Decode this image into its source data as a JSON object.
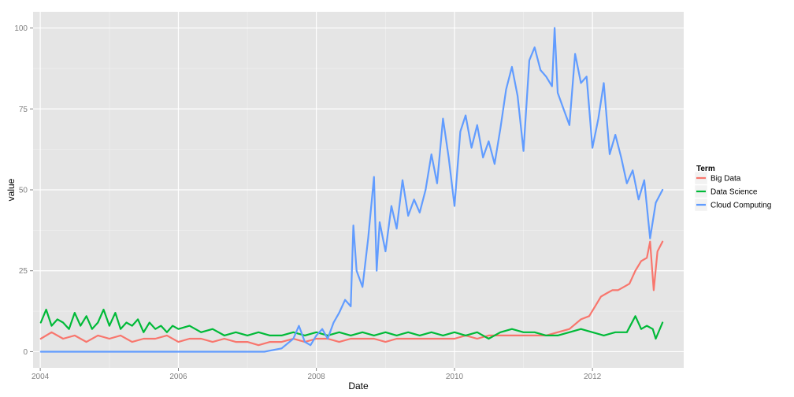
{
  "chart_data": {
    "type": "line",
    "xlabel": "Date",
    "ylabel": "value",
    "x_ticks": [
      "2004",
      "2006",
      "2008",
      "2010",
      "2012"
    ],
    "y_ticks": [
      0,
      25,
      50,
      75,
      100
    ],
    "xlim": [
      "2003-11-24",
      "2013-04-28"
    ],
    "ylim": [
      -5,
      105
    ],
    "grid": true,
    "background": "#e5e5e5",
    "legend": {
      "title": "Term",
      "placement": "right"
    },
    "series": [
      {
        "name": "Big Data",
        "color": "#f8766d",
        "points": [
          [
            "2004-01-04",
            4
          ],
          [
            "2004-03-01",
            6
          ],
          [
            "2004-05-01",
            4
          ],
          [
            "2004-07-01",
            5
          ],
          [
            "2004-09-01",
            3
          ],
          [
            "2004-11-01",
            5
          ],
          [
            "2005-01-01",
            4
          ],
          [
            "2005-03-01",
            5
          ],
          [
            "2005-05-01",
            3
          ],
          [
            "2005-07-01",
            4
          ],
          [
            "2005-09-01",
            4
          ],
          [
            "2005-11-01",
            5
          ],
          [
            "2006-01-01",
            3
          ],
          [
            "2006-03-01",
            4
          ],
          [
            "2006-05-01",
            4
          ],
          [
            "2006-07-01",
            3
          ],
          [
            "2006-09-01",
            4
          ],
          [
            "2006-11-01",
            3
          ],
          [
            "2007-01-01",
            3
          ],
          [
            "2007-03-01",
            2
          ],
          [
            "2007-05-01",
            3
          ],
          [
            "2007-07-01",
            3
          ],
          [
            "2007-09-01",
            4
          ],
          [
            "2007-11-01",
            3
          ],
          [
            "2008-01-01",
            4
          ],
          [
            "2008-03-01",
            4
          ],
          [
            "2008-05-01",
            3
          ],
          [
            "2008-07-01",
            4
          ],
          [
            "2008-09-01",
            4
          ],
          [
            "2008-11-01",
            4
          ],
          [
            "2009-01-01",
            3
          ],
          [
            "2009-03-01",
            4
          ],
          [
            "2009-05-01",
            4
          ],
          [
            "2009-07-01",
            4
          ],
          [
            "2009-09-01",
            4
          ],
          [
            "2009-11-01",
            4
          ],
          [
            "2010-01-01",
            4
          ],
          [
            "2010-03-01",
            5
          ],
          [
            "2010-05-01",
            4
          ],
          [
            "2010-07-01",
            5
          ],
          [
            "2010-09-01",
            5
          ],
          [
            "2010-11-01",
            5
          ],
          [
            "2011-01-01",
            5
          ],
          [
            "2011-03-01",
            5
          ],
          [
            "2011-05-01",
            5
          ],
          [
            "2011-07-01",
            6
          ],
          [
            "2011-09-01",
            7
          ],
          [
            "2011-11-01",
            10
          ],
          [
            "2011-12-15",
            11
          ],
          [
            "2012-01-15",
            14
          ],
          [
            "2012-02-15",
            17
          ],
          [
            "2012-03-15",
            18
          ],
          [
            "2012-04-15",
            19
          ],
          [
            "2012-05-15",
            19
          ],
          [
            "2012-06-15",
            20
          ],
          [
            "2012-07-15",
            21
          ],
          [
            "2012-08-15",
            25
          ],
          [
            "2012-09-15",
            28
          ],
          [
            "2012-10-15",
            29
          ],
          [
            "2012-11-01",
            34
          ],
          [
            "2012-11-20",
            19
          ],
          [
            "2012-12-10",
            31
          ],
          [
            "2013-01-06",
            34
          ]
        ]
      },
      {
        "name": "Data Science",
        "color": "#00ba38",
        "points": [
          [
            "2004-01-04",
            9
          ],
          [
            "2004-02-01",
            13
          ],
          [
            "2004-03-01",
            8
          ],
          [
            "2004-04-01",
            10
          ],
          [
            "2004-05-01",
            9
          ],
          [
            "2004-06-01",
            7
          ],
          [
            "2004-07-01",
            12
          ],
          [
            "2004-08-01",
            8
          ],
          [
            "2004-09-01",
            11
          ],
          [
            "2004-10-01",
            7
          ],
          [
            "2004-11-01",
            9
          ],
          [
            "2004-12-01",
            13
          ],
          [
            "2005-01-01",
            8
          ],
          [
            "2005-02-01",
            12
          ],
          [
            "2005-03-01",
            7
          ],
          [
            "2005-04-01",
            9
          ],
          [
            "2005-05-01",
            8
          ],
          [
            "2005-06-01",
            10
          ],
          [
            "2005-07-01",
            6
          ],
          [
            "2005-08-01",
            9
          ],
          [
            "2005-09-01",
            7
          ],
          [
            "2005-10-01",
            8
          ],
          [
            "2005-11-01",
            6
          ],
          [
            "2005-12-01",
            8
          ],
          [
            "2006-01-01",
            7
          ],
          [
            "2006-03-01",
            8
          ],
          [
            "2006-05-01",
            6
          ],
          [
            "2006-07-01",
            7
          ],
          [
            "2006-09-01",
            5
          ],
          [
            "2006-11-01",
            6
          ],
          [
            "2007-01-01",
            5
          ],
          [
            "2007-03-01",
            6
          ],
          [
            "2007-05-01",
            5
          ],
          [
            "2007-07-01",
            5
          ],
          [
            "2007-09-01",
            6
          ],
          [
            "2007-11-01",
            5
          ],
          [
            "2008-01-01",
            6
          ],
          [
            "2008-03-01",
            5
          ],
          [
            "2008-05-01",
            6
          ],
          [
            "2008-07-01",
            5
          ],
          [
            "2008-09-01",
            6
          ],
          [
            "2008-11-01",
            5
          ],
          [
            "2009-01-01",
            6
          ],
          [
            "2009-03-01",
            5
          ],
          [
            "2009-05-01",
            6
          ],
          [
            "2009-07-01",
            5
          ],
          [
            "2009-09-01",
            6
          ],
          [
            "2009-11-01",
            5
          ],
          [
            "2010-01-01",
            6
          ],
          [
            "2010-03-01",
            5
          ],
          [
            "2010-05-01",
            6
          ],
          [
            "2010-07-01",
            4
          ],
          [
            "2010-09-01",
            6
          ],
          [
            "2010-11-01",
            7
          ],
          [
            "2011-01-01",
            6
          ],
          [
            "2011-03-01",
            6
          ],
          [
            "2011-05-01",
            5
          ],
          [
            "2011-07-01",
            5
          ],
          [
            "2011-09-01",
            6
          ],
          [
            "2011-11-01",
            7
          ],
          [
            "2012-01-01",
            6
          ],
          [
            "2012-03-01",
            5
          ],
          [
            "2012-05-01",
            6
          ],
          [
            "2012-07-01",
            6
          ],
          [
            "2012-08-15",
            11
          ],
          [
            "2012-09-15",
            7
          ],
          [
            "2012-10-15",
            8
          ],
          [
            "2012-11-15",
            7
          ],
          [
            "2012-12-01",
            4
          ],
          [
            "2013-01-06",
            9
          ]
        ]
      },
      {
        "name": "Cloud Computing",
        "color": "#619cff",
        "points": [
          [
            "2004-01-04",
            0
          ],
          [
            "2004-06-01",
            0
          ],
          [
            "2005-01-01",
            0
          ],
          [
            "2005-06-01",
            0
          ],
          [
            "2006-01-01",
            0
          ],
          [
            "2006-06-01",
            0
          ],
          [
            "2007-01-01",
            0
          ],
          [
            "2007-04-01",
            0
          ],
          [
            "2007-07-01",
            1
          ],
          [
            "2007-09-01",
            4
          ],
          [
            "2007-10-01",
            8
          ],
          [
            "2007-11-01",
            3
          ],
          [
            "2007-12-01",
            2
          ],
          [
            "2008-01-01",
            5
          ],
          [
            "2008-02-01",
            7
          ],
          [
            "2008-03-01",
            4
          ],
          [
            "2008-04-01",
            9
          ],
          [
            "2008-05-01",
            12
          ],
          [
            "2008-06-01",
            16
          ],
          [
            "2008-07-01",
            14
          ],
          [
            "2008-07-15",
            39
          ],
          [
            "2008-08-01",
            25
          ],
          [
            "2008-09-01",
            20
          ],
          [
            "2008-10-01",
            35
          ],
          [
            "2008-11-01",
            54
          ],
          [
            "2008-11-15",
            25
          ],
          [
            "2008-12-01",
            40
          ],
          [
            "2009-01-01",
            31
          ],
          [
            "2009-02-01",
            45
          ],
          [
            "2009-03-01",
            38
          ],
          [
            "2009-04-01",
            53
          ],
          [
            "2009-05-01",
            42
          ],
          [
            "2009-06-01",
            47
          ],
          [
            "2009-07-01",
            43
          ],
          [
            "2009-08-01",
            50
          ],
          [
            "2009-09-01",
            61
          ],
          [
            "2009-10-01",
            52
          ],
          [
            "2009-11-01",
            72
          ],
          [
            "2009-12-01",
            60
          ],
          [
            "2010-01-01",
            45
          ],
          [
            "2010-02-01",
            68
          ],
          [
            "2010-03-01",
            73
          ],
          [
            "2010-04-01",
            63
          ],
          [
            "2010-05-01",
            70
          ],
          [
            "2010-06-01",
            60
          ],
          [
            "2010-07-01",
            65
          ],
          [
            "2010-08-01",
            58
          ],
          [
            "2010-09-01",
            69
          ],
          [
            "2010-10-01",
            81
          ],
          [
            "2010-11-01",
            88
          ],
          [
            "2010-12-01",
            79
          ],
          [
            "2011-01-01",
            62
          ],
          [
            "2011-02-01",
            90
          ],
          [
            "2011-03-01",
            94
          ],
          [
            "2011-04-01",
            87
          ],
          [
            "2011-05-01",
            85
          ],
          [
            "2011-06-01",
            82
          ],
          [
            "2011-06-15",
            100
          ],
          [
            "2011-07-01",
            80
          ],
          [
            "2011-08-01",
            75
          ],
          [
            "2011-09-01",
            70
          ],
          [
            "2011-10-01",
            92
          ],
          [
            "2011-11-01",
            83
          ],
          [
            "2011-12-01",
            85
          ],
          [
            "2012-01-01",
            63
          ],
          [
            "2012-02-01",
            72
          ],
          [
            "2012-03-01",
            83
          ],
          [
            "2012-04-01",
            61
          ],
          [
            "2012-05-01",
            67
          ],
          [
            "2012-06-01",
            60
          ],
          [
            "2012-07-01",
            52
          ],
          [
            "2012-08-01",
            56
          ],
          [
            "2012-09-01",
            47
          ],
          [
            "2012-10-01",
            53
          ],
          [
            "2012-11-01",
            35
          ],
          [
            "2012-12-01",
            46
          ],
          [
            "2013-01-06",
            50
          ]
        ]
      }
    ]
  }
}
